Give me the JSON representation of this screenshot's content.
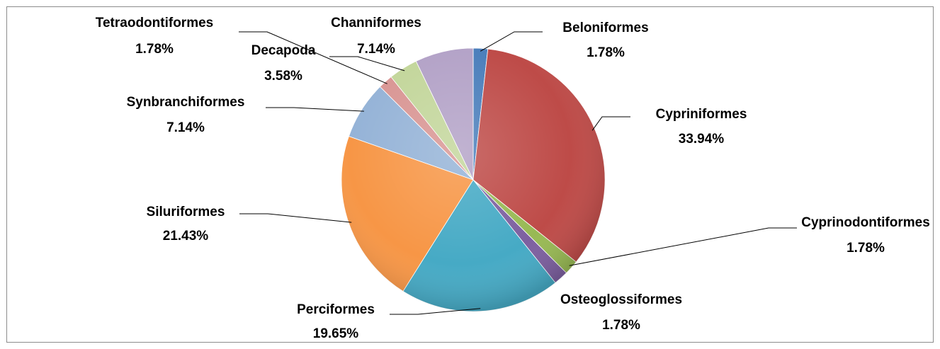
{
  "chart_data": {
    "type": "pie",
    "categories": [
      "Beloniformes",
      "Cypriniformes",
      "Cyprinodontiformes",
      "Osteoglossiformes",
      "Perciformes",
      "Siluriformes",
      "Synbranchiformes",
      "Tetraodontiformes",
      "Decapoda",
      "Channiformes"
    ],
    "values": [
      1.78,
      33.94,
      1.78,
      1.78,
      19.65,
      21.43,
      7.14,
      1.78,
      3.58,
      7.14
    ],
    "value_labels": [
      "1.78%",
      "33.94%",
      "1.78%",
      "1.78%",
      "19.65%",
      "21.43%",
      "7.14%",
      "1.78%",
      "3.58%",
      "7.14%"
    ],
    "colors": [
      "#4a7ebb",
      "#be4b48",
      "#98b954",
      "#7d60a0",
      "#46aac5",
      "#f79646",
      "#95b3d7",
      "#d99694",
      "#c3d69b",
      "#b3a2c7"
    ]
  }
}
